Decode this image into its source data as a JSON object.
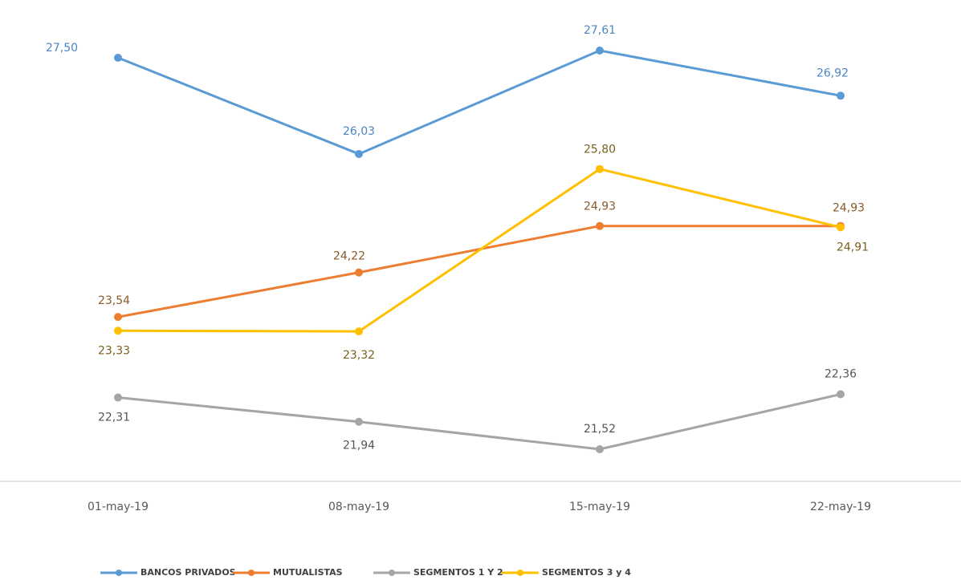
{
  "chart_data": {
    "type": "line",
    "categories": [
      "01-may-19",
      "08-may-19",
      "15-may-19",
      "22-may-19"
    ],
    "series": [
      {
        "name": "BANCOS PRIVADOS",
        "color": "#5b9bd5",
        "values": [
          27.5,
          26.03,
          27.61,
          26.92
        ],
        "value_labels": [
          "27,50",
          "26,03",
          "27,61",
          "26,92"
        ]
      },
      {
        "name": "MUTUALISTAS",
        "color": "#ed7d31",
        "values": [
          23.54,
          24.22,
          24.93,
          24.93
        ],
        "value_labels": [
          "23,54",
          "24,22",
          "24,93",
          "24,93"
        ]
      },
      {
        "name": "SEGMENTOS 1 Y 2",
        "color": "#a5a5a5",
        "values": [
          22.31,
          21.94,
          21.52,
          22.36
        ],
        "value_labels": [
          "22,31",
          "21,94",
          "21,52",
          "22,36"
        ]
      },
      {
        "name": "SEGMENTOS 3 y 4",
        "color": "#ffc000",
        "values": [
          23.33,
          23.32,
          25.8,
          24.91
        ],
        "value_labels": [
          "23,33",
          "23,32",
          "25,80",
          "24,91"
        ]
      }
    ],
    "grid": false,
    "legend": "bottom"
  }
}
